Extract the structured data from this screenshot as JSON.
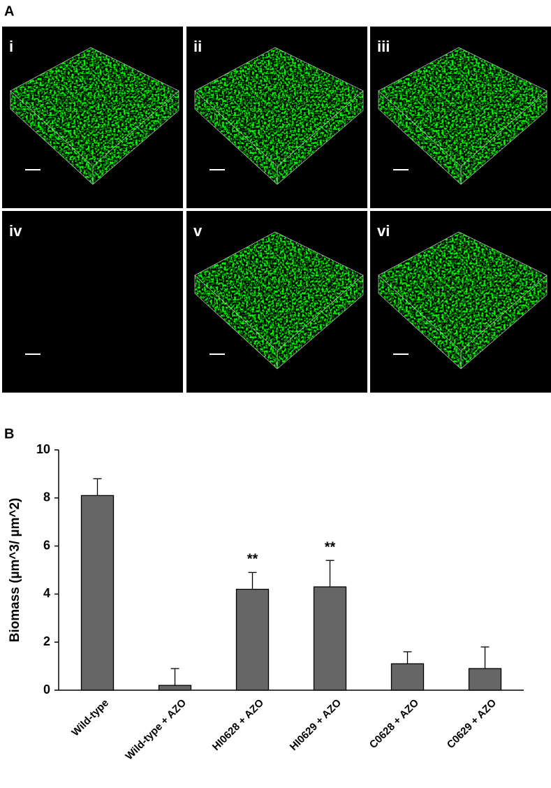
{
  "panel_labels": [
    "A",
    "B"
  ],
  "image_labels": [
    "i",
    "ii",
    "iii",
    "iv",
    "v",
    "vi"
  ],
  "chart_data": {
    "type": "bar",
    "y_label": "Biomass (µm^3/ µm^2)",
    "categories": [
      "Wild-type",
      "Wild-type + AZO",
      "HI0628 + AZO",
      "HI0629 + AZO",
      "C0628 + AZO",
      "C0629 + AZO"
    ],
    "values": [
      8.1,
      0.2,
      4.2,
      4.3,
      1.1,
      0.9
    ],
    "errors": [
      0.7,
      0.7,
      0.7,
      1.1,
      0.5,
      0.9
    ],
    "value_annotations": [
      null,
      null,
      "**",
      "**",
      null,
      null
    ],
    "color": "#666666",
    "ylim": [
      0,
      10
    ],
    "yticks": [
      0,
      2,
      4,
      6,
      8,
      10
    ]
  }
}
